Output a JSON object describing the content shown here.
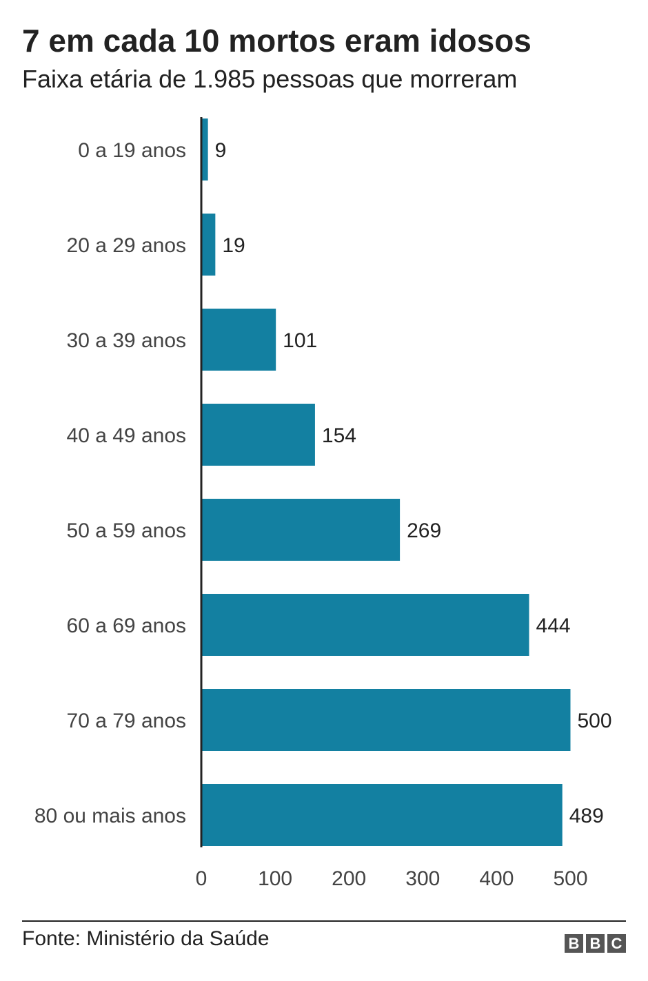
{
  "header": {
    "title": "7 em cada 10 mortos eram idosos",
    "subtitle": "Faixa etária de 1.985 pessoas que morreram"
  },
  "footer": {
    "source": "Fonte: Ministério da Saúde",
    "logo_letters": [
      "B",
      "B",
      "C"
    ]
  },
  "chart_data": {
    "type": "bar",
    "orientation": "horizontal",
    "categories": [
      "0 a 19 anos",
      "20 a 29 anos",
      "30 a 39 anos",
      "40 a 49 anos",
      "50 a 59 anos",
      "60 a 69 anos",
      "70 a 79 anos",
      "80 ou mais anos"
    ],
    "values": [
      9,
      19,
      101,
      154,
      269,
      444,
      500,
      489
    ],
    "data_labels": [
      "9",
      "19",
      "101",
      "154",
      "269",
      "444",
      "500",
      "489"
    ],
    "xlim": [
      0,
      500
    ],
    "xticks": [
      0,
      100,
      200,
      300,
      400,
      500
    ],
    "bar_color": "#1380A1",
    "grid": false
  }
}
